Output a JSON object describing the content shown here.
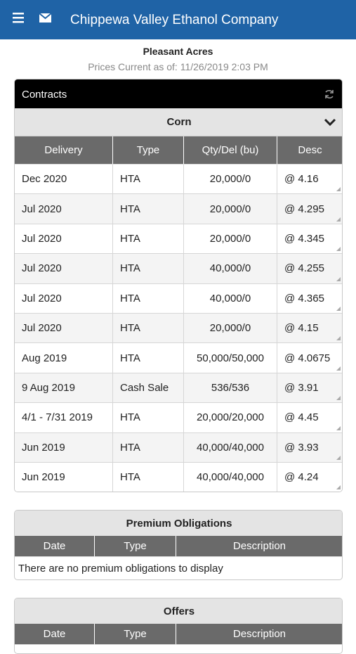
{
  "header": {
    "title": "Chippewa Valley Ethanol Company"
  },
  "account": {
    "name": "Pleasant Acres",
    "prices_current": "Prices Current as of: 11/26/2019 2:03 PM"
  },
  "contracts": {
    "title": "Contracts",
    "commodity": "Corn",
    "columns": [
      "Delivery",
      "Type",
      "Qty/Del (bu)",
      "Desc"
    ],
    "rows": [
      [
        "Dec 2020",
        "HTA",
        "20,000/0",
        "@ 4.16"
      ],
      [
        "Jul 2020",
        "HTA",
        "20,000/0",
        "@ 4.295"
      ],
      [
        "Jul 2020",
        "HTA",
        "20,000/0",
        "@ 4.345"
      ],
      [
        "Jul 2020",
        "HTA",
        "40,000/0",
        "@ 4.255"
      ],
      [
        "Jul 2020",
        "HTA",
        "40,000/0",
        "@ 4.365"
      ],
      [
        "Jul 2020",
        "HTA",
        "20,000/0",
        "@ 4.15"
      ],
      [
        "Aug 2019",
        "HTA",
        "50,000/50,000",
        "@ 4.0675"
      ],
      [
        "9 Aug 2019",
        "Cash Sale",
        "536/536",
        "@ 3.91"
      ],
      [
        "4/1 - 7/31 2019",
        "HTA",
        "20,000/20,000",
        "@ 4.45"
      ],
      [
        "Jun 2019",
        "HTA",
        "40,000/40,000",
        "@ 3.93"
      ],
      [
        "Jun 2019",
        "HTA",
        "40,000/40,000",
        "@ 4.24"
      ]
    ]
  },
  "premium_obligations": {
    "title": "Premium Obligations",
    "columns": [
      "Date",
      "Type",
      "Description"
    ],
    "message": "There are no premium obligations to display"
  },
  "offers": {
    "title": "Offers",
    "columns": [
      "Date",
      "Type",
      "Description"
    ]
  }
}
